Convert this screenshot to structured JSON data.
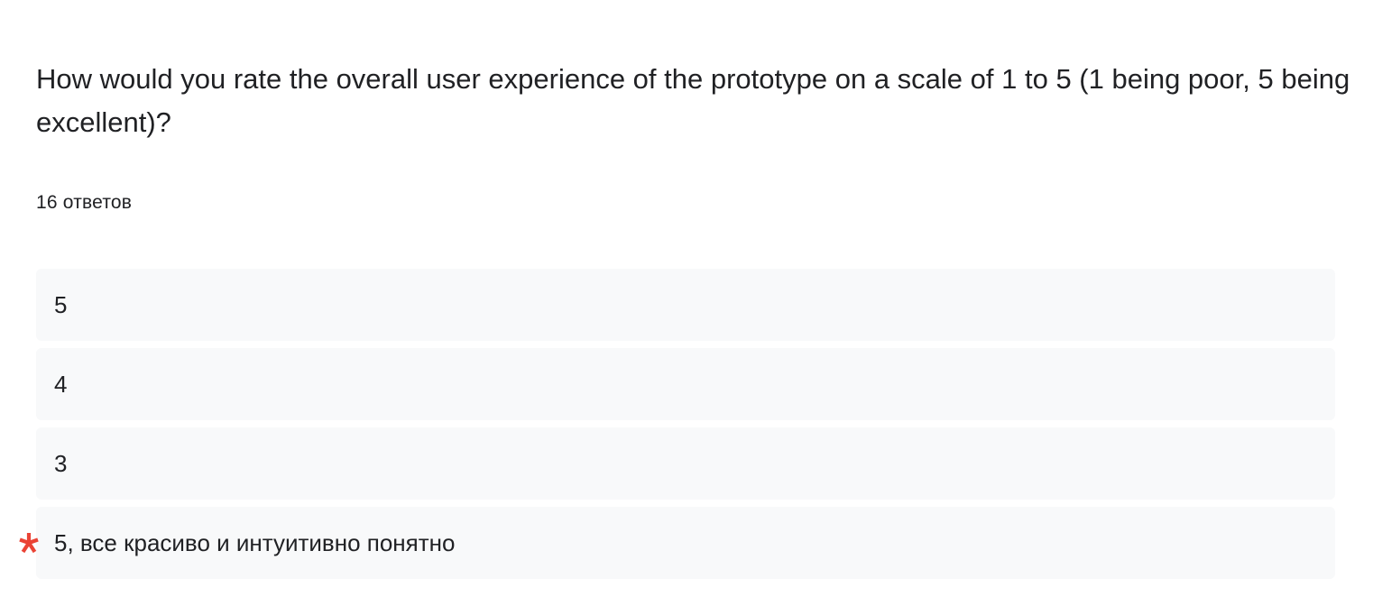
{
  "question": {
    "title": "How would you rate the overall user experience of the prototype on a scale of 1 to 5 (1 being poor, 5 being excellent)?",
    "response_count": "16 ответов"
  },
  "answers": [
    {
      "text": "5",
      "marked": false
    },
    {
      "text": "4",
      "marked": false
    },
    {
      "text": "3",
      "marked": false
    },
    {
      "text": "5, все красиво и интуитивно понятно",
      "marked": true
    }
  ],
  "colors": {
    "marker": "#ea4335",
    "answer_background": "#f8f9fa",
    "text": "#202124"
  },
  "icons": {
    "marker": "asterisk-icon"
  }
}
